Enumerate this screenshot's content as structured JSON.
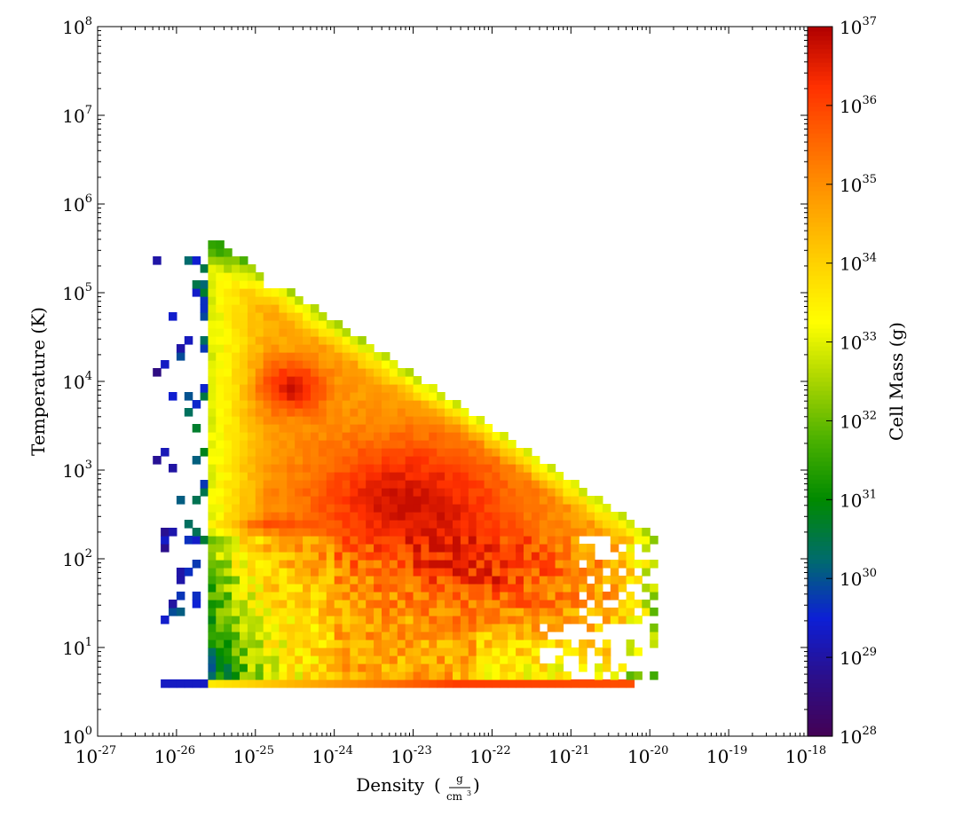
{
  "chart_data": {
    "type": "heatmap",
    "title": "",
    "xlabel": "Density",
    "xlabel_unit_num": "g",
    "xlabel_unit_den": "cm",
    "xlabel_unit_den_exp": "3",
    "ylabel": "Temperature  (K)",
    "colorbar_label": "Cell Mass  (g)",
    "x_scale": "log",
    "y_scale": "log",
    "colorbar_scale": "log",
    "xlim": [
      1e-27,
      1e-18
    ],
    "ylim": [
      1,
      100000000.0
    ],
    "clim": [
      1e+28,
      1e+37
    ],
    "x_ticks": [
      {
        "base": "10",
        "exp": "-27"
      },
      {
        "base": "10",
        "exp": "-26"
      },
      {
        "base": "10",
        "exp": "-25"
      },
      {
        "base": "10",
        "exp": "-24"
      },
      {
        "base": "10",
        "exp": "-23"
      },
      {
        "base": "10",
        "exp": "-22"
      },
      {
        "base": "10",
        "exp": "-21"
      },
      {
        "base": "10",
        "exp": "-20"
      },
      {
        "base": "10",
        "exp": "-19"
      },
      {
        "base": "10",
        "exp": "-18"
      }
    ],
    "y_ticks": [
      {
        "base": "10",
        "exp": "0"
      },
      {
        "base": "10",
        "exp": "1"
      },
      {
        "base": "10",
        "exp": "2"
      },
      {
        "base": "10",
        "exp": "3"
      },
      {
        "base": "10",
        "exp": "4"
      },
      {
        "base": "10",
        "exp": "5"
      },
      {
        "base": "10",
        "exp": "6"
      },
      {
        "base": "10",
        "exp": "7"
      },
      {
        "base": "10",
        "exp": "8"
      }
    ],
    "colorbar_ticks": [
      {
        "base": "10",
        "exp": "28"
      },
      {
        "base": "10",
        "exp": "29"
      },
      {
        "base": "10",
        "exp": "30"
      },
      {
        "base": "10",
        "exp": "31"
      },
      {
        "base": "10",
        "exp": "32"
      },
      {
        "base": "10",
        "exp": "33"
      },
      {
        "base": "10",
        "exp": "34"
      },
      {
        "base": "10",
        "exp": "35"
      },
      {
        "base": "10",
        "exp": "36"
      },
      {
        "base": "10",
        "exp": "37"
      }
    ],
    "colormap": [
      "#440154",
      "#2b0f8a",
      "#0d1fd6",
      "#006c6c",
      "#008a00",
      "#49b000",
      "#a8d400",
      "#ffff00",
      "#ffd200",
      "#ffa000",
      "#ff6a00",
      "#ff3000",
      "#b00000"
    ],
    "grid": false,
    "regions": [
      {
        "logx_range": [
          -25.6,
          -19.95
        ],
        "logy_range": [
          0.5,
          0.6
        ],
        "mass_log": 35.2,
        "note": "floor strip"
      },
      {
        "logx_range": [
          -26.2,
          -25.6
        ],
        "logy_range": [
          0.5,
          0.6
        ],
        "mass_log": 29.0
      }
    ],
    "peaks": [
      {
        "logx": -24.6,
        "logy": 3.9,
        "mass_log": 36.5
      },
      {
        "logx": -23.0,
        "logy": 2.5,
        "mass_log": 36.4
      },
      {
        "logx": -25.0,
        "logy": 2.35,
        "mass_log": 34.8
      },
      {
        "logx": -22.0,
        "logy": 2.0,
        "mass_log": 35.8
      }
    ]
  }
}
